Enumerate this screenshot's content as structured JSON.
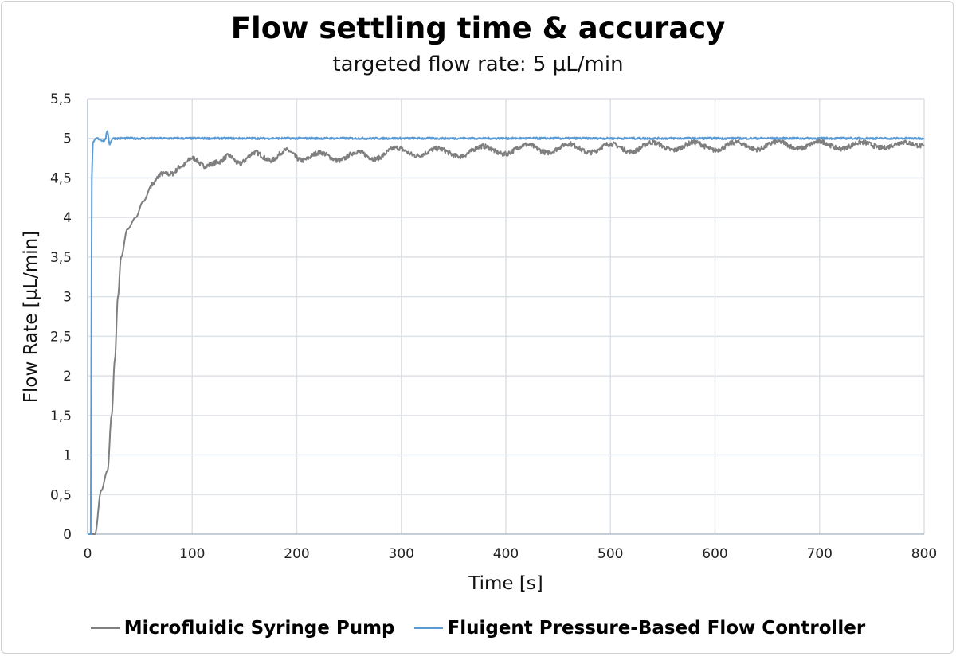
{
  "chart_data": {
    "type": "line",
    "title": "Flow settling time & accuracy",
    "subtitle": "targeted flow rate: 5 µL/min",
    "xlabel": "Time [s]",
    "ylabel": "Flow Rate [µL/min]",
    "xlim": [
      0,
      800
    ],
    "ylim": [
      0,
      5.5
    ],
    "xticks": [
      "0",
      "100",
      "200",
      "300",
      "400",
      "500",
      "600",
      "700",
      "800"
    ],
    "yticks": [
      "0",
      "0,5",
      "1",
      "1,5",
      "2",
      "2,5",
      "3",
      "3,5",
      "4",
      "4,5",
      "5",
      "5,5"
    ],
    "grid": true,
    "legend_position": "bottom",
    "series": [
      {
        "name": "Microfluidic Syringe Pump",
        "color": "#7f7f7f",
        "x": [
          0,
          7,
          13,
          19,
          23,
          26,
          29,
          32,
          38,
          46,
          53,
          62,
          70,
          80,
          90,
          100,
          112,
          125,
          135,
          145,
          160,
          175,
          190,
          205,
          222,
          240,
          258,
          275,
          295,
          315,
          335,
          355,
          378,
          398,
          420,
          440,
          460,
          480,
          500,
          520,
          540,
          560,
          580,
          600,
          620,
          640,
          660,
          680,
          700,
          720,
          740,
          760,
          780,
          800
        ],
        "y": [
          0,
          0,
          0.55,
          0.8,
          1.5,
          2.2,
          3.0,
          3.5,
          3.85,
          4.0,
          4.2,
          4.42,
          4.55,
          4.55,
          4.65,
          4.75,
          4.65,
          4.7,
          4.78,
          4.68,
          4.82,
          4.72,
          4.85,
          4.72,
          4.82,
          4.72,
          4.83,
          4.74,
          4.88,
          4.78,
          4.87,
          4.77,
          4.9,
          4.8,
          4.92,
          4.82,
          4.93,
          4.82,
          4.93,
          4.83,
          4.95,
          4.85,
          4.95,
          4.85,
          4.95,
          4.86,
          4.96,
          4.87,
          4.96,
          4.87,
          4.95,
          4.88,
          4.95,
          4.9
        ]
      },
      {
        "name": "Fluigent Pressure-Based Flow Controller",
        "color": "#5b9bd5",
        "x": [
          0,
          3,
          4,
          5,
          8,
          16,
          19,
          21,
          24,
          800
        ],
        "y": [
          0,
          0,
          4.5,
          4.95,
          5.0,
          4.97,
          5.08,
          4.93,
          5.0,
          5.0
        ]
      }
    ]
  }
}
